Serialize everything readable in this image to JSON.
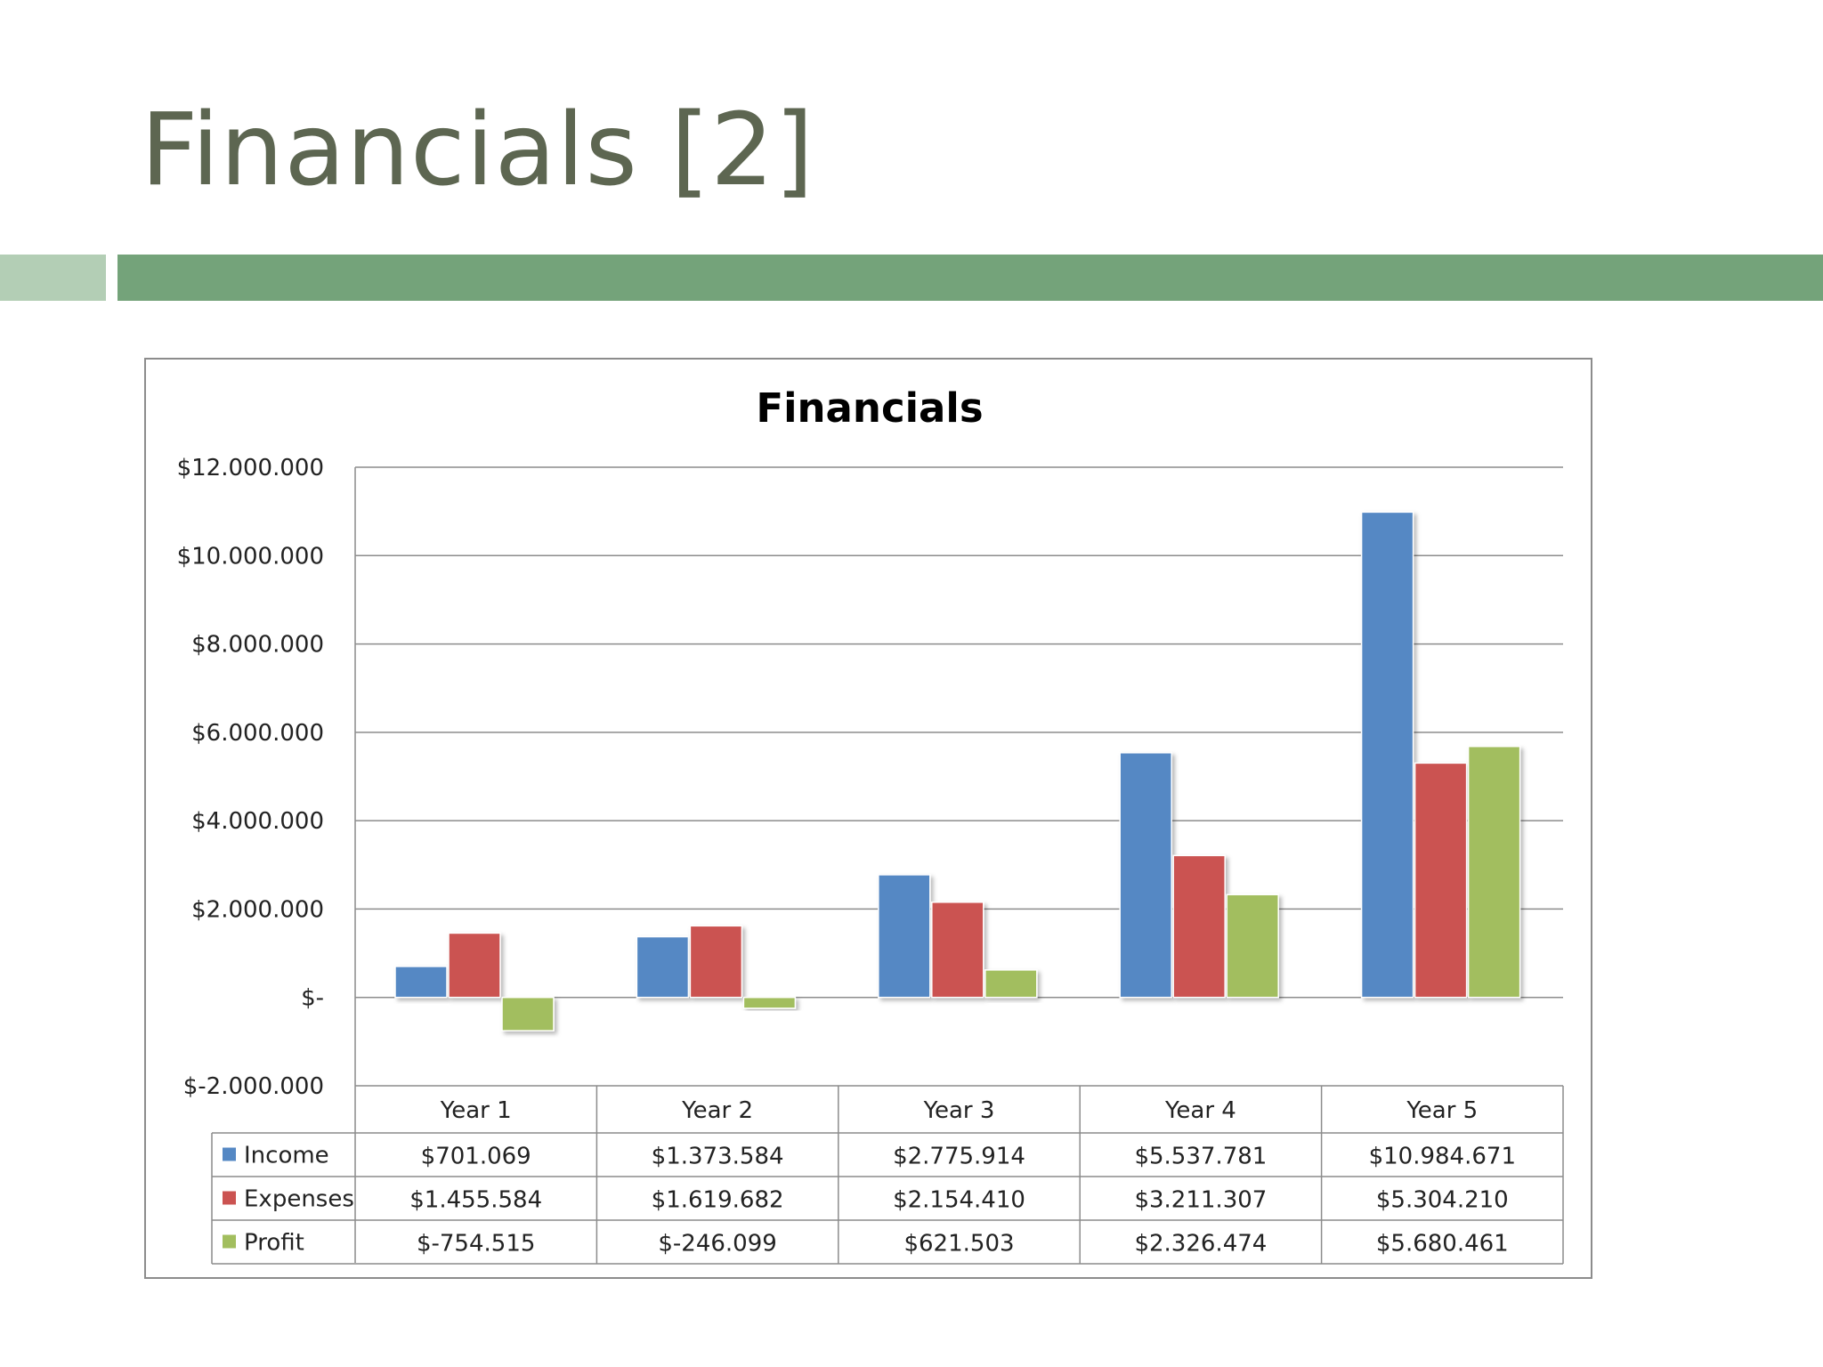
{
  "slide": {
    "title": "Financials [2]"
  },
  "colors": {
    "title": "#5d6651",
    "accent_light": "#b3ceb5",
    "accent_dark": "#74a37a",
    "income": "#5588c4",
    "expenses": "#cb5351",
    "profit": "#a2be5e"
  },
  "chart_data": {
    "type": "bar",
    "title": "Financials",
    "xlabel": "",
    "ylabel": "",
    "ylim": [
      -2000000,
      12000000
    ],
    "ytick_values": [
      12000000,
      10000000,
      8000000,
      6000000,
      4000000,
      2000000,
      0,
      -2000000
    ],
    "ytick_labels": [
      "$12.000.000",
      "$10.000.000",
      "$8.000.000",
      "$6.000.000",
      "$4.000.000",
      "$2.000.000",
      "$-",
      "$-2.000.000"
    ],
    "grid": true,
    "legend": "data-table",
    "categories": [
      "Year 1",
      "Year 2",
      "Year 3",
      "Year 4",
      "Year 5"
    ],
    "series": [
      {
        "name": "Income",
        "color": "#5588c4",
        "values": [
          701069,
          1373584,
          2775914,
          5537781,
          10984671
        ],
        "labels": [
          "$701.069",
          "$1.373.584",
          "$2.775.914",
          "$5.537.781",
          "$10.984.671"
        ]
      },
      {
        "name": "Expenses",
        "color": "#cb5351",
        "values": [
          1455584,
          1619682,
          2154410,
          3211307,
          5304210
        ],
        "labels": [
          "$1.455.584",
          "$1.619.682",
          "$2.154.410",
          "$3.211.307",
          "$5.304.210"
        ]
      },
      {
        "name": "Profit",
        "color": "#a2be5e",
        "values": [
          -754515,
          -246099,
          621503,
          2326474,
          5680461
        ],
        "labels": [
          "$-754.515",
          "$-246.099",
          "$621.503",
          "$2.326.474",
          "$5.680.461"
        ]
      }
    ]
  }
}
